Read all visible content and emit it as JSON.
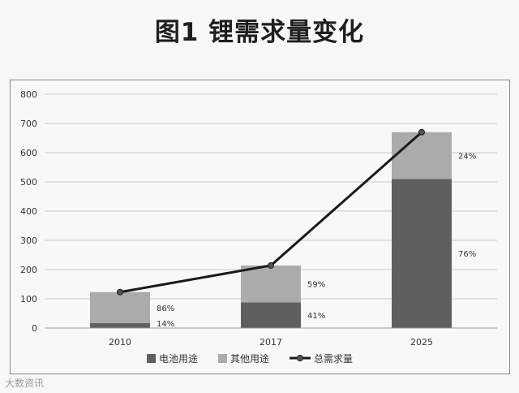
{
  "chart_data": {
    "type": "bar",
    "title": "图1  锂需求量变化",
    "categories": [
      "2010",
      "2017",
      "2025"
    ],
    "series": [
      {
        "name": "电池用途",
        "type": "bar",
        "stack": "total",
        "color": "#5f5f5f",
        "values": [
          17,
          88,
          510
        ],
        "labels": [
          "14%",
          "41%",
          "76%"
        ]
      },
      {
        "name": "其他用途",
        "type": "bar",
        "stack": "total",
        "color": "#ababab",
        "values": [
          106,
          126,
          160
        ],
        "labels": [
          "86%",
          "59%",
          "24%"
        ]
      },
      {
        "name": "总需求量",
        "type": "line",
        "color": "#1a1a1a",
        "values": [
          123,
          214,
          670
        ]
      }
    ],
    "ylim": [
      0,
      800
    ],
    "yticks": [
      0,
      100,
      200,
      300,
      400,
      500,
      600,
      700,
      800
    ],
    "grid": true,
    "legend": "bottom"
  },
  "watermark": "大数资讯"
}
